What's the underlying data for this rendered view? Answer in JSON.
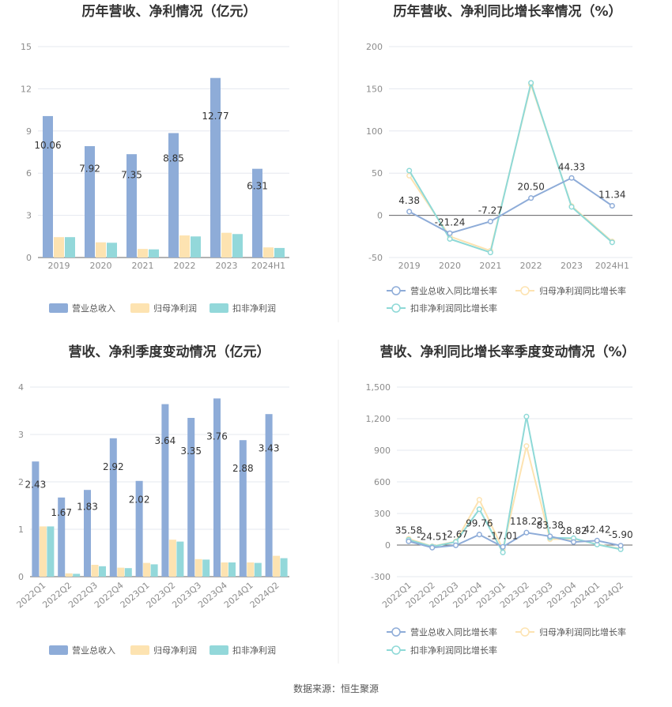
{
  "colors": {
    "revenue": "#8eacd8",
    "net_profit": "#fde3b1",
    "deducted_profit": "#93d8da",
    "rev_growth_line": "#8eacd8",
    "net_growth_line": "#fde3b1",
    "ded_growth_line": "#8ed9d7",
    "grid": "#e5e8ef",
    "axis_text": "#8c8c8c",
    "title": "#333333",
    "divider": "#eeeeee"
  },
  "source": "数据来源：恒生聚源",
  "chart_data": [
    {
      "id": "c1",
      "type": "bar",
      "title": "历年营收、净利情况（亿元）",
      "categories": [
        "2019",
        "2020",
        "2021",
        "2022",
        "2023",
        "2024H1"
      ],
      "ylim": [
        0,
        15
      ],
      "yticks": [
        0,
        3,
        6,
        9,
        12,
        15
      ],
      "grid": true,
      "legend_position": "bottom",
      "series": [
        {
          "name": "营业总收入",
          "color_key": "revenue",
          "values": [
            10.06,
            7.92,
            7.35,
            8.85,
            12.77,
            6.31
          ],
          "labels": [
            "10.06",
            "7.92",
            "7.35",
            "8.85",
            "12.77",
            "6.31"
          ]
        },
        {
          "name": "归母净利润",
          "color_key": "net_profit",
          "values": [
            1.45,
            1.08,
            0.61,
            1.57,
            1.76,
            0.72
          ]
        },
        {
          "name": "扣非净利润",
          "color_key": "deducted_profit",
          "values": [
            1.45,
            1.05,
            0.58,
            1.5,
            1.67,
            0.68
          ]
        }
      ]
    },
    {
      "id": "c2",
      "type": "line",
      "title": "历年营收、净利同比增长率情况（%）",
      "categories": [
        "2019",
        "2020",
        "2021",
        "2022",
        "2023",
        "2024H1"
      ],
      "ylim": [
        -50,
        200
      ],
      "yticks": [
        -50,
        0,
        50,
        100,
        150,
        200
      ],
      "grid": true,
      "legend_position": "bottom",
      "series": [
        {
          "name": "营业总收入同比增长率",
          "color_key": "rev_growth_line",
          "values": [
            4.38,
            -21.24,
            -7.27,
            20.5,
            44.33,
            11.34
          ],
          "labels": [
            "4.38",
            "-21.24",
            "-7.27",
            "20.50",
            "44.33",
            "11.34"
          ]
        },
        {
          "name": "归母净利润同比增长率",
          "color_key": "net_growth_line",
          "values": [
            47,
            -25,
            -42,
            155,
            11,
            -31
          ]
        },
        {
          "name": "扣非净利润同比增长率",
          "color_key": "ded_growth_line",
          "values": [
            53,
            -28,
            -44,
            157,
            10,
            -32
          ]
        }
      ]
    },
    {
      "id": "c3",
      "type": "bar",
      "title": "营收、净利季度变动情况（亿元）",
      "categories": [
        "2022Q1",
        "2022Q2",
        "2022Q3",
        "2022Q4",
        "2023Q1",
        "2023Q2",
        "2023Q3",
        "2023Q4",
        "2024Q1",
        "2024Q2"
      ],
      "ylim": [
        0,
        4
      ],
      "yticks": [
        0,
        1,
        2,
        3,
        4
      ],
      "grid": true,
      "legend_position": "bottom",
      "series": [
        {
          "name": "营业总收入",
          "color_key": "revenue",
          "values": [
            2.43,
            1.67,
            1.83,
            2.92,
            2.02,
            3.64,
            3.35,
            3.76,
            2.88,
            3.43
          ],
          "labels": [
            "2.43",
            "1.67",
            "1.83",
            "2.92",
            "2.02",
            "3.64",
            "3.35",
            "3.76",
            "2.88",
            "3.43"
          ]
        },
        {
          "name": "归母净利润",
          "color_key": "net_profit",
          "values": [
            1.06,
            0.07,
            0.25,
            0.19,
            0.29,
            0.78,
            0.37,
            0.3,
            0.3,
            0.44
          ]
        },
        {
          "name": "扣非净利润",
          "color_key": "deducted_profit",
          "values": [
            1.06,
            0.06,
            0.22,
            0.18,
            0.26,
            0.74,
            0.36,
            0.3,
            0.29,
            0.39
          ]
        }
      ]
    },
    {
      "id": "c4",
      "type": "line",
      "title": "营收、净利同比增长率季度变动情况（%）",
      "categories": [
        "2022Q1",
        "2022Q2",
        "2022Q3",
        "2022Q4",
        "2023Q1",
        "2023Q2",
        "2023Q3",
        "2023Q4",
        "2024Q1",
        "2024Q2"
      ],
      "ylim": [
        -300,
        1500
      ],
      "yticks": [
        -300,
        0,
        300,
        600,
        900,
        1200,
        1500
      ],
      "ytick_labels": [
        "-300",
        "0",
        "300",
        "600",
        "900",
        "1,200",
        "1,500"
      ],
      "grid": true,
      "legend_position": "bottom",
      "series": [
        {
          "name": "营业总收入同比增长率",
          "color_key": "rev_growth_line",
          "values": [
            35.58,
            -24.51,
            -2.67,
            99.76,
            -17.01,
            118.22,
            83.38,
            28.82,
            42.42,
            -5.9
          ],
          "labels": [
            "35.58",
            "-24.51",
            "-2.67",
            "99.76",
            "-17.01",
            "118.22",
            "83.38",
            "28.82",
            "42.42",
            "-5.90"
          ]
        },
        {
          "name": "归母净利润同比增长率",
          "color_key": "net_growth_line",
          "values": [
            60,
            -12,
            35,
            430,
            -40,
            940,
            55,
            60,
            8,
            -35
          ]
        },
        {
          "name": "扣非净利润同比增长率",
          "color_key": "ded_growth_line",
          "values": [
            50,
            -15,
            30,
            340,
            -70,
            1220,
            70,
            65,
            5,
            -40
          ]
        }
      ]
    }
  ]
}
